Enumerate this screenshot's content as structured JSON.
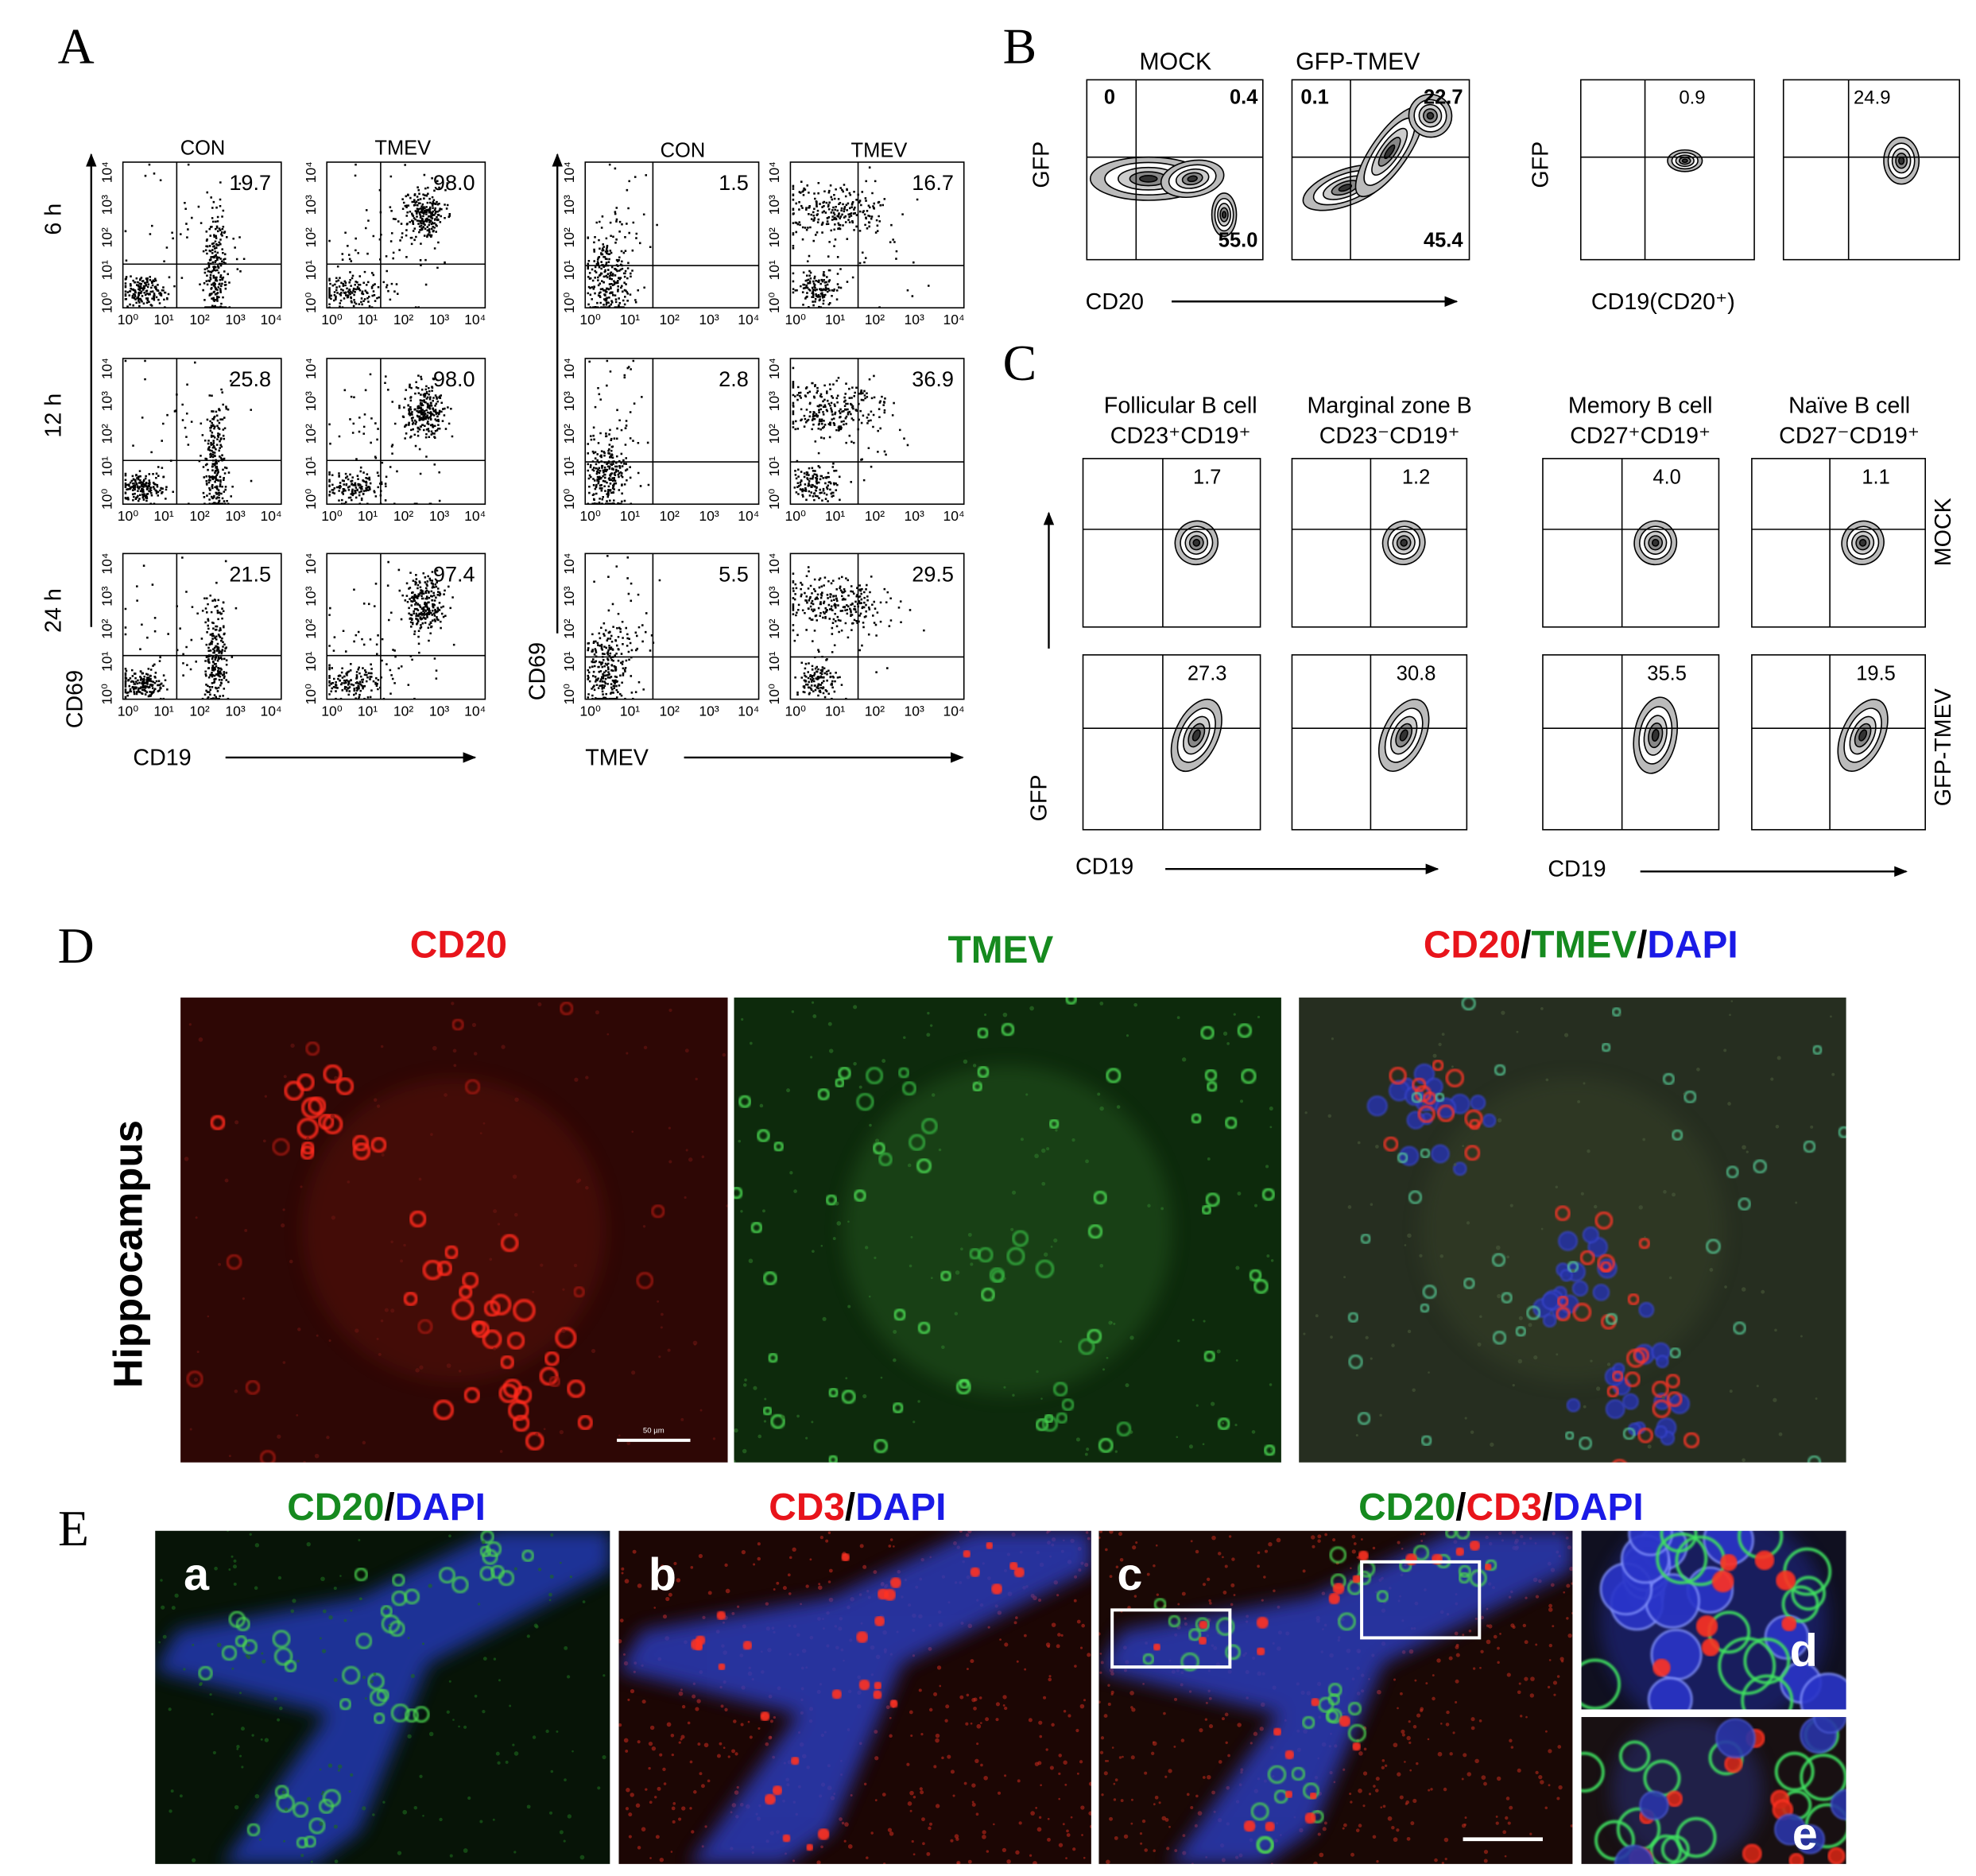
{
  "panel_a": {
    "letter": "A",
    "tick_labels": [
      "10⁰",
      "10¹",
      "10²",
      "10³",
      "10⁴"
    ],
    "columns": [
      "CON",
      "TMEV"
    ],
    "rows": [
      "6 h",
      "12 h",
      "24 h"
    ],
    "y_label": "CD69",
    "cd19": {
      "x_label": "CD19",
      "values": [
        [
          "19.7",
          "98.0"
        ],
        [
          "25.8",
          "98.0"
        ],
        [
          "21.5",
          "97.4"
        ]
      ]
    },
    "tmev": {
      "x_label": "TMEV",
      "values": [
        [
          "1.5",
          "16.7"
        ],
        [
          "2.8",
          "36.9"
        ],
        [
          "5.5",
          "29.5"
        ]
      ]
    }
  },
  "panel_b": {
    "letter": "B",
    "columns": [
      "MOCK",
      "GFP-TMEV"
    ],
    "y_label": "GFP",
    "x_label": "CD20",
    "quadrants": [
      [
        "0",
        "0.4",
        "55.0"
      ],
      [
        "0.1",
        "22.7",
        "45.4"
      ]
    ],
    "gated": {
      "y_label": "GFP",
      "x_label": "CD19(CD20⁺)",
      "values": [
        "0.9",
        "24.9"
      ]
    }
  },
  "panel_c": {
    "letter": "C",
    "columns": [
      {
        "name": "Follicular B cell",
        "markers": "CD23⁺CD19⁺"
      },
      {
        "name": "Marginal zone B",
        "markers": "CD23⁻CD19⁺"
      },
      {
        "name": "Memory B cell",
        "markers": "CD27⁺CD19⁺"
      },
      {
        "name": "Naïve B cell",
        "markers": "CD27⁻CD19⁺"
      }
    ],
    "rows": [
      "MOCK",
      "GFP-TMEV"
    ],
    "y_label": "GFP",
    "x_label": "CD19",
    "values": [
      [
        "1.7",
        "1.2",
        "4.0",
        "1.1"
      ],
      [
        "27.3",
        "30.8",
        "35.5",
        "19.5"
      ]
    ]
  },
  "panel_d": {
    "letter": "D",
    "region": "Hippocampus",
    "scale_bar": "50 µm",
    "titles": [
      [
        {
          "text": "CD20",
          "color": "#e8141b"
        }
      ],
      [
        {
          "text": "TMEV",
          "color": "#168a1f"
        }
      ],
      [
        {
          "text": "CD20",
          "color": "#e8141b"
        },
        {
          "text": "/",
          "color": "#000000"
        },
        {
          "text": "TMEV",
          "color": "#168a1f"
        },
        {
          "text": "/",
          "color": "#000000"
        },
        {
          "text": "DAPI",
          "color": "#1a1ae6"
        }
      ]
    ]
  },
  "panel_e": {
    "letter": "E",
    "subpanels": [
      "a",
      "b",
      "c",
      "d",
      "e"
    ],
    "titles": [
      [
        {
          "text": "CD20",
          "color": "#168a1f"
        },
        {
          "text": "/",
          "color": "#000000"
        },
        {
          "text": "DAPI",
          "color": "#1a1ae6"
        }
      ],
      [
        {
          "text": "CD3",
          "color": "#e8141b"
        },
        {
          "text": "/",
          "color": "#000000"
        },
        {
          "text": "DAPI",
          "color": "#1a1ae6"
        }
      ],
      [
        {
          "text": "CD20",
          "color": "#168a1f"
        },
        {
          "text": "/",
          "color": "#000000"
        },
        {
          "text": "CD3",
          "color": "#e8141b"
        },
        {
          "text": "/",
          "color": "#000000"
        },
        {
          "text": "DAPI",
          "color": "#1a1ae6"
        }
      ]
    ]
  }
}
